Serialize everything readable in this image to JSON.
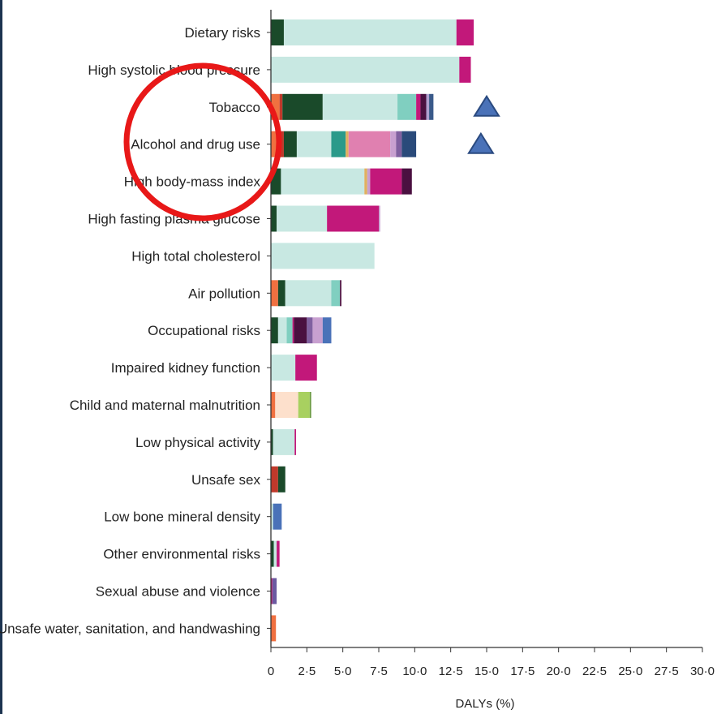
{
  "chart_data": {
    "type": "bar",
    "stacked": true,
    "orientation": "horizontal",
    "xlabel": "DALYs (%)",
    "xlim": [
      0,
      30
    ],
    "xticks": [
      "0",
      "2·5",
      "5·0",
      "7·5",
      "10·0",
      "12·5",
      "15·0",
      "17·5",
      "20·0",
      "22·5",
      "25·0",
      "27·5",
      "30·0"
    ],
    "categories": [
      "Dietary risks",
      "High systolic blood pressure",
      "Tobacco",
      "Alcohol and drug use",
      "High body-mass index",
      "High fasting plasma glucose",
      "High total cholesterol",
      "Air pollution",
      "Occupational risks",
      "Impaired kidney function",
      "Child and maternal malnutrition",
      "Low physical activity",
      "Unsafe sex",
      "Low bone mineral density",
      "Other environmental risks",
      "Sexual abuse and violence",
      "Unsafe water, sanitation, and handwashing"
    ],
    "bars": [
      [
        {
          "v": 0.9,
          "c": "#1a4a2a"
        },
        {
          "v": 12.0,
          "c": "#c8e8e2"
        },
        {
          "v": 1.2,
          "c": "#c2187a"
        }
      ],
      [
        {
          "v": 13.1,
          "c": "#c8e8e2"
        },
        {
          "v": 0.8,
          "c": "#c2187a"
        }
      ],
      [
        {
          "v": 0.6,
          "c": "#f07040"
        },
        {
          "v": 0.2,
          "c": "#c0392b"
        },
        {
          "v": 2.8,
          "c": "#1a4a2a"
        },
        {
          "v": 5.2,
          "c": "#c8e8e2"
        },
        {
          "v": 1.3,
          "c": "#80cfc0"
        },
        {
          "v": 0.3,
          "c": "#c2187a"
        },
        {
          "v": 0.4,
          "c": "#4a1040"
        },
        {
          "v": 0.2,
          "c": "#b0a0d0"
        },
        {
          "v": 0.3,
          "c": "#3a5a8a"
        }
      ],
      [
        {
          "v": 0.6,
          "c": "#f07040"
        },
        {
          "v": 0.3,
          "c": "#c0392b"
        },
        {
          "v": 0.9,
          "c": "#1a4a2a"
        },
        {
          "v": 2.4,
          "c": "#c8e8e2"
        },
        {
          "v": 1.0,
          "c": "#2a9a8a"
        },
        {
          "v": 0.2,
          "c": "#e0b060"
        },
        {
          "v": 2.9,
          "c": "#e080b0"
        },
        {
          "v": 0.4,
          "c": "#c8a0d0"
        },
        {
          "v": 0.4,
          "c": "#8060a0"
        },
        {
          "v": 1.0,
          "c": "#2a4a7a"
        }
      ],
      [
        {
          "v": 0.7,
          "c": "#1a4a2a"
        },
        {
          "v": 5.8,
          "c": "#c8e8e2"
        },
        {
          "v": 0.2,
          "c": "#e0b060"
        },
        {
          "v": 0.2,
          "c": "#c8a0d0"
        },
        {
          "v": 2.2,
          "c": "#c2187a"
        },
        {
          "v": 0.7,
          "c": "#4a1040"
        }
      ],
      [
        {
          "v": 0.4,
          "c": "#1a4a2a"
        },
        {
          "v": 3.5,
          "c": "#c8e8e2"
        },
        {
          "v": 3.6,
          "c": "#c2187a"
        },
        {
          "v": 0.1,
          "c": "#c8a0d0"
        }
      ],
      [
        {
          "v": 7.2,
          "c": "#c8e8e2"
        }
      ],
      [
        {
          "v": 0.5,
          "c": "#f07040"
        },
        {
          "v": 0.5,
          "c": "#1a4a2a"
        },
        {
          "v": 3.2,
          "c": "#c8e8e2"
        },
        {
          "v": 0.6,
          "c": "#80cfc0"
        },
        {
          "v": 0.1,
          "c": "#4a1040"
        }
      ],
      [
        {
          "v": 0.5,
          "c": "#1a4a2a"
        },
        {
          "v": 0.6,
          "c": "#c8e8e2"
        },
        {
          "v": 0.4,
          "c": "#80cfc0"
        },
        {
          "v": 0.1,
          "c": "#c2187a"
        },
        {
          "v": 0.9,
          "c": "#4a1040"
        },
        {
          "v": 0.4,
          "c": "#8060a0"
        },
        {
          "v": 0.7,
          "c": "#c8a0d0"
        },
        {
          "v": 0.6,
          "c": "#4a72b8"
        }
      ],
      [
        {
          "v": 1.7,
          "c": "#c8e8e2"
        },
        {
          "v": 1.5,
          "c": "#c2187a"
        }
      ],
      [
        {
          "v": 0.3,
          "c": "#f07040"
        },
        {
          "v": 1.6,
          "c": "#fde0cc"
        },
        {
          "v": 0.8,
          "c": "#a8d060"
        },
        {
          "v": 0.1,
          "c": "#6a9a40"
        }
      ],
      [
        {
          "v": 0.15,
          "c": "#1a4a2a"
        },
        {
          "v": 1.5,
          "c": "#c8e8e2"
        },
        {
          "v": 0.1,
          "c": "#c2187a"
        }
      ],
      [
        {
          "v": 0.5,
          "c": "#c0392b"
        },
        {
          "v": 0.5,
          "c": "#1a4a2a"
        }
      ],
      [
        {
          "v": 0.15,
          "c": "#c8e8e2"
        },
        {
          "v": 0.6,
          "c": "#4a72b8"
        }
      ],
      [
        {
          "v": 0.2,
          "c": "#1a4a2a"
        },
        {
          "v": 0.2,
          "c": "#c8e8e2"
        },
        {
          "v": 0.2,
          "c": "#c2187a"
        }
      ],
      [
        {
          "v": 0.1,
          "c": "#c2187a"
        },
        {
          "v": 0.3,
          "c": "#6a5aa0"
        }
      ],
      [
        {
          "v": 0.35,
          "c": "#f07040"
        }
      ]
    ],
    "markers": [
      {
        "category": "Tobacco",
        "x": 15.0,
        "shape": "triangle",
        "color": "#4a72b8"
      },
      {
        "category": "Alcohol and drug use",
        "x": 14.6,
        "shape": "triangle",
        "color": "#4a72b8"
      }
    ],
    "highlight": {
      "shape": "circle",
      "color": "#e81818"
    }
  }
}
